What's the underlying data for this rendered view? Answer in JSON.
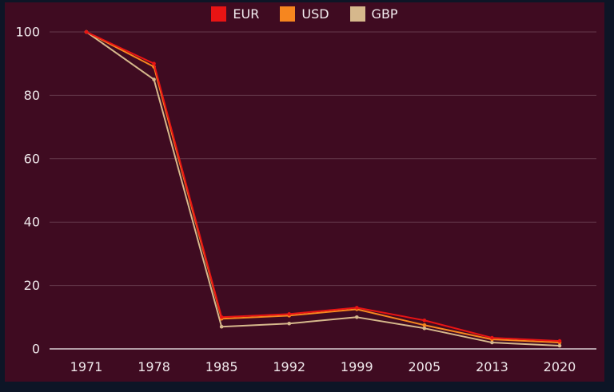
{
  "chart_data": {
    "type": "line",
    "title": "",
    "xlabel": "",
    "ylabel": "",
    "categories": [
      "1971",
      "1978",
      "1985",
      "1992",
      "1999",
      "2005",
      "2013",
      "2020"
    ],
    "series": [
      {
        "name": "EUR",
        "color": "#e81414",
        "values": [
          100,
          90,
          10,
          11,
          13,
          9,
          3.5,
          2.5
        ]
      },
      {
        "name": "USD",
        "color": "#f6861f",
        "values": [
          100,
          89,
          9.5,
          10.5,
          12.5,
          7.5,
          3,
          2
        ]
      },
      {
        "name": "GBP",
        "color": "#d6b88c",
        "values": [
          100,
          85,
          7,
          8,
          10,
          6.5,
          2,
          1
        ]
      }
    ],
    "ylim": [
      0,
      100
    ],
    "yticks": [
      0,
      20,
      40,
      60,
      80,
      100
    ],
    "grid": true,
    "legend_position": "top-center"
  },
  "colors": {
    "background": "#3f0b21",
    "frame": "#0d1526",
    "axis_text": "#efe8eb",
    "axis_line": "#d8ced3",
    "gridline": "rgba(236,227,232,0.22)"
  }
}
